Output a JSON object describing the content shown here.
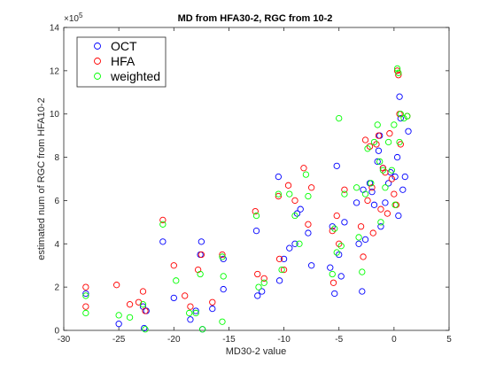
{
  "chart_data": {
    "type": "scatter",
    "title": "MD from HFA30-2, RGC from 10-2",
    "xlabel": "MD30-2 value",
    "ylabel": "estimated num of RGC from HFA10-2",
    "xlim": [
      -30,
      5
    ],
    "ylim": [
      0,
      14
    ],
    "y_multiplier_label": "×10",
    "y_multiplier_exponent": "5",
    "x_ticks": [
      "-30",
      "-25",
      "-20",
      "-15",
      "-10",
      "-5",
      "0",
      "5"
    ],
    "y_ticks": [
      "0",
      "2",
      "4",
      "6",
      "8",
      "10",
      "12",
      "14"
    ],
    "x_tick_values": [
      -30,
      -25,
      -20,
      -15,
      -10,
      -5,
      0,
      5
    ],
    "y_tick_values": [
      0,
      2,
      4,
      6,
      8,
      10,
      12,
      14
    ],
    "grid": false,
    "legend_position": "top-left",
    "series": [
      {
        "name": "OCT",
        "color": "#0000ff",
        "points": [
          [
            -28,
            1.7
          ],
          [
            -25,
            0.3
          ],
          [
            -22.8,
            1.1
          ],
          [
            -22.7,
            0.1
          ],
          [
            -22.5,
            0.9
          ],
          [
            -21,
            4.1
          ],
          [
            -20,
            1.5
          ],
          [
            -18.5,
            0.5
          ],
          [
            -18,
            0.9
          ],
          [
            -17.6,
            3.5
          ],
          [
            -17.5,
            4.1
          ],
          [
            -17.4,
            0.05
          ],
          [
            -16.5,
            1.0
          ],
          [
            -15.5,
            3.3
          ],
          [
            -15.5,
            1.9
          ],
          [
            -12.5,
            4.6
          ],
          [
            -12.4,
            1.6
          ],
          [
            -12,
            1.8
          ],
          [
            -10.5,
            7.1
          ],
          [
            -10.4,
            2.3
          ],
          [
            -10,
            3.3
          ],
          [
            -9.5,
            3.8
          ],
          [
            -9.0,
            4.0
          ],
          [
            -8.8,
            5.4
          ],
          [
            -8.5,
            5.6
          ],
          [
            -7.8,
            4.5
          ],
          [
            -7.5,
            3.0
          ],
          [
            -5.8,
            2.9
          ],
          [
            -5.6,
            4.8
          ],
          [
            -5.4,
            1.7
          ],
          [
            -5.2,
            7.6
          ],
          [
            -5.0,
            3.5
          ],
          [
            -4.8,
            2.5
          ],
          [
            -4.5,
            5.0
          ],
          [
            -3.4,
            5.9
          ],
          [
            -3.2,
            4.0
          ],
          [
            -2.9,
            1.8
          ],
          [
            -2.8,
            6.5
          ],
          [
            -2.6,
            4.2
          ],
          [
            -2.2,
            6.8
          ],
          [
            -2.0,
            6.4
          ],
          [
            -1.8,
            5.8
          ],
          [
            -1.5,
            7.8
          ],
          [
            -1.4,
            8.3
          ],
          [
            -1.3,
            9.0
          ],
          [
            -1.2,
            4.8
          ],
          [
            -1.0,
            7.5
          ],
          [
            -0.8,
            5.9
          ],
          [
            -0.5,
            6.8
          ],
          [
            -0.3,
            7.3
          ],
          [
            0.1,
            7.1
          ],
          [
            0.3,
            8.0
          ],
          [
            0.4,
            5.3
          ],
          [
            0.5,
            10.8
          ],
          [
            0.6,
            9.8
          ],
          [
            0.8,
            6.5
          ],
          [
            1.0,
            7.1
          ],
          [
            1.3,
            9.2
          ]
        ]
      },
      {
        "name": "HFA",
        "color": "#ff0000",
        "points": [
          [
            -28,
            2.0
          ],
          [
            -28,
            1.1
          ],
          [
            -25.2,
            2.1
          ],
          [
            -24,
            1.2
          ],
          [
            -23.2,
            1.3
          ],
          [
            -22.8,
            1.8
          ],
          [
            -22.6,
            0.9
          ],
          [
            -21,
            5.1
          ],
          [
            -20,
            3.0
          ],
          [
            -19,
            1.6
          ],
          [
            -18.5,
            1.1
          ],
          [
            -17.8,
            2.8
          ],
          [
            -17.5,
            3.5
          ],
          [
            -16.5,
            1.3
          ],
          [
            -15.6,
            3.5
          ],
          [
            -12.6,
            5.5
          ],
          [
            -12.4,
            2.6
          ],
          [
            -11.8,
            2.4
          ],
          [
            -10.5,
            6.2
          ],
          [
            -10.4,
            3.3
          ],
          [
            -10,
            2.8
          ],
          [
            -9.6,
            6.7
          ],
          [
            -9.0,
            6.0
          ],
          [
            -8.2,
            7.5
          ],
          [
            -7.8,
            4.9
          ],
          [
            -7.5,
            6.6
          ],
          [
            -5.6,
            4.6
          ],
          [
            -5.5,
            2.2
          ],
          [
            -5.2,
            5.3
          ],
          [
            -5.0,
            4.0
          ],
          [
            -4.5,
            6.5
          ],
          [
            -3.0,
            4.8
          ],
          [
            -2.8,
            3.4
          ],
          [
            -2.6,
            8.8
          ],
          [
            -2.4,
            6.0
          ],
          [
            -2.2,
            8.5
          ],
          [
            -2.0,
            6.6
          ],
          [
            -1.9,
            4.5
          ],
          [
            -1.6,
            8.6
          ],
          [
            -1.4,
            9.0
          ],
          [
            -1.2,
            5.6
          ],
          [
            -1.0,
            7.5
          ],
          [
            -0.8,
            7.3
          ],
          [
            -0.6,
            5.4
          ],
          [
            -0.4,
            9.1
          ],
          [
            -0.2,
            7.0
          ],
          [
            0.0,
            6.3
          ],
          [
            0.2,
            5.8
          ],
          [
            0.3,
            12.0
          ],
          [
            0.4,
            11.8
          ],
          [
            0.5,
            10.0
          ],
          [
            0.6,
            8.6
          ],
          [
            1.2,
            9.9
          ]
        ]
      },
      {
        "name": "weighted",
        "color": "#00ff00",
        "points": [
          [
            -28,
            1.6
          ],
          [
            -28,
            0.8
          ],
          [
            -25,
            0.7
          ],
          [
            -24,
            0.6
          ],
          [
            -22.8,
            1.2
          ],
          [
            -22.6,
            0.05
          ],
          [
            -21,
            4.9
          ],
          [
            -19.8,
            2.3
          ],
          [
            -18.6,
            0.8
          ],
          [
            -18,
            0.8
          ],
          [
            -17.6,
            2.6
          ],
          [
            -17.4,
            0.05
          ],
          [
            -15.6,
            3.4
          ],
          [
            -15.5,
            2.5
          ],
          [
            -15.6,
            0.4
          ],
          [
            -12.5,
            5.3
          ],
          [
            -12.3,
            2.0
          ],
          [
            -11.8,
            2.2
          ],
          [
            -10.5,
            6.3
          ],
          [
            -10.2,
            2.8
          ],
          [
            -9.5,
            6.3
          ],
          [
            -9.0,
            5.3
          ],
          [
            -8.6,
            4.0
          ],
          [
            -8.0,
            7.2
          ],
          [
            -7.8,
            6.2
          ],
          [
            -5.6,
            2.6
          ],
          [
            -5.4,
            4.7
          ],
          [
            -5.2,
            3.6
          ],
          [
            -5.0,
            9.8
          ],
          [
            -4.8,
            3.9
          ],
          [
            -4.5,
            6.3
          ],
          [
            -3.4,
            6.6
          ],
          [
            -3.2,
            4.3
          ],
          [
            -2.9,
            2.7
          ],
          [
            -2.6,
            6.3
          ],
          [
            -2.4,
            8.4
          ],
          [
            -2.1,
            6.8
          ],
          [
            -1.8,
            8.7
          ],
          [
            -1.5,
            9.5
          ],
          [
            -1.3,
            7.8
          ],
          [
            -1.2,
            5.0
          ],
          [
            -1.0,
            7.4
          ],
          [
            -0.8,
            6.6
          ],
          [
            -0.5,
            8.7
          ],
          [
            -0.2,
            7.4
          ],
          [
            0.0,
            9.5
          ],
          [
            0.1,
            5.8
          ],
          [
            0.3,
            12.1
          ],
          [
            0.4,
            11.9
          ],
          [
            0.5,
            8.7
          ],
          [
            0.6,
            10.0
          ],
          [
            0.9,
            9.8
          ],
          [
            1.2,
            9.9
          ]
        ]
      }
    ]
  }
}
